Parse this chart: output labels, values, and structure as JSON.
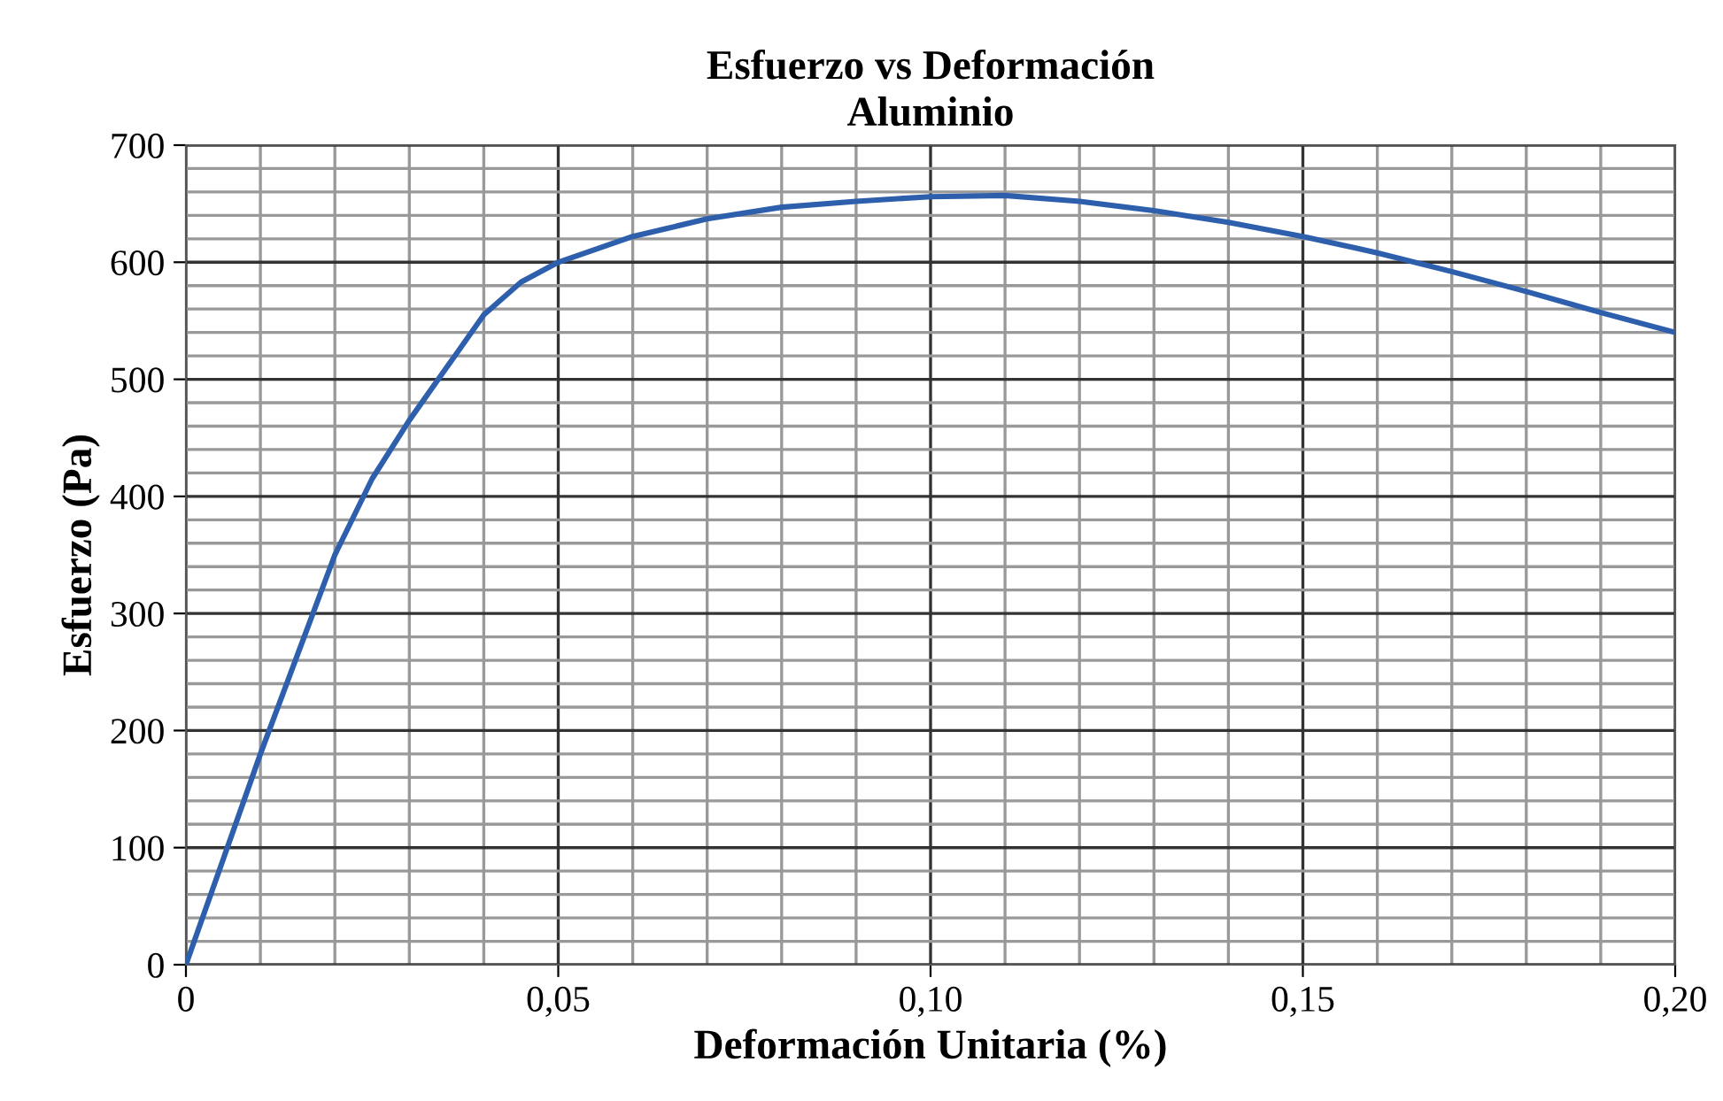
{
  "chart_data": {
    "type": "line",
    "title": "Esfuerzo vs Deformación\nAluminio",
    "xlabel": "Deformación Unitaria (%)",
    "ylabel": "Esfuerzo (Pa)",
    "x": [
      0,
      0.005,
      0.01,
      0.015,
      0.02,
      0.025,
      0.03,
      0.035,
      0.04,
      0.045,
      0.05,
      0.06,
      0.07,
      0.08,
      0.09,
      0.1,
      0.11,
      0.12,
      0.13,
      0.14,
      0.15,
      0.16,
      0.17,
      0.18,
      0.19,
      0.2
    ],
    "series": [
      {
        "color": "#2e5fad",
        "values": [
          0,
          90,
          180,
          265,
          350,
          415,
          465,
          510,
          555,
          583,
          600,
          622,
          637,
          647,
          652,
          656,
          657,
          652,
          644,
          634,
          622,
          608,
          592,
          575,
          557,
          540
        ]
      }
    ],
    "xlim": [
      0,
      0.2
    ],
    "ylim": [
      0,
      700
    ],
    "xticks": [
      {
        "value": 0,
        "label": "0"
      },
      {
        "value": 0.05,
        "label": "0,05"
      },
      {
        "value": 0.1,
        "label": "0,10"
      },
      {
        "value": 0.15,
        "label": "0,15"
      },
      {
        "value": 0.2,
        "label": "0,20"
      }
    ],
    "yticks": [
      0,
      100,
      200,
      300,
      400,
      500,
      600,
      700
    ],
    "grid": true,
    "legend": false
  }
}
